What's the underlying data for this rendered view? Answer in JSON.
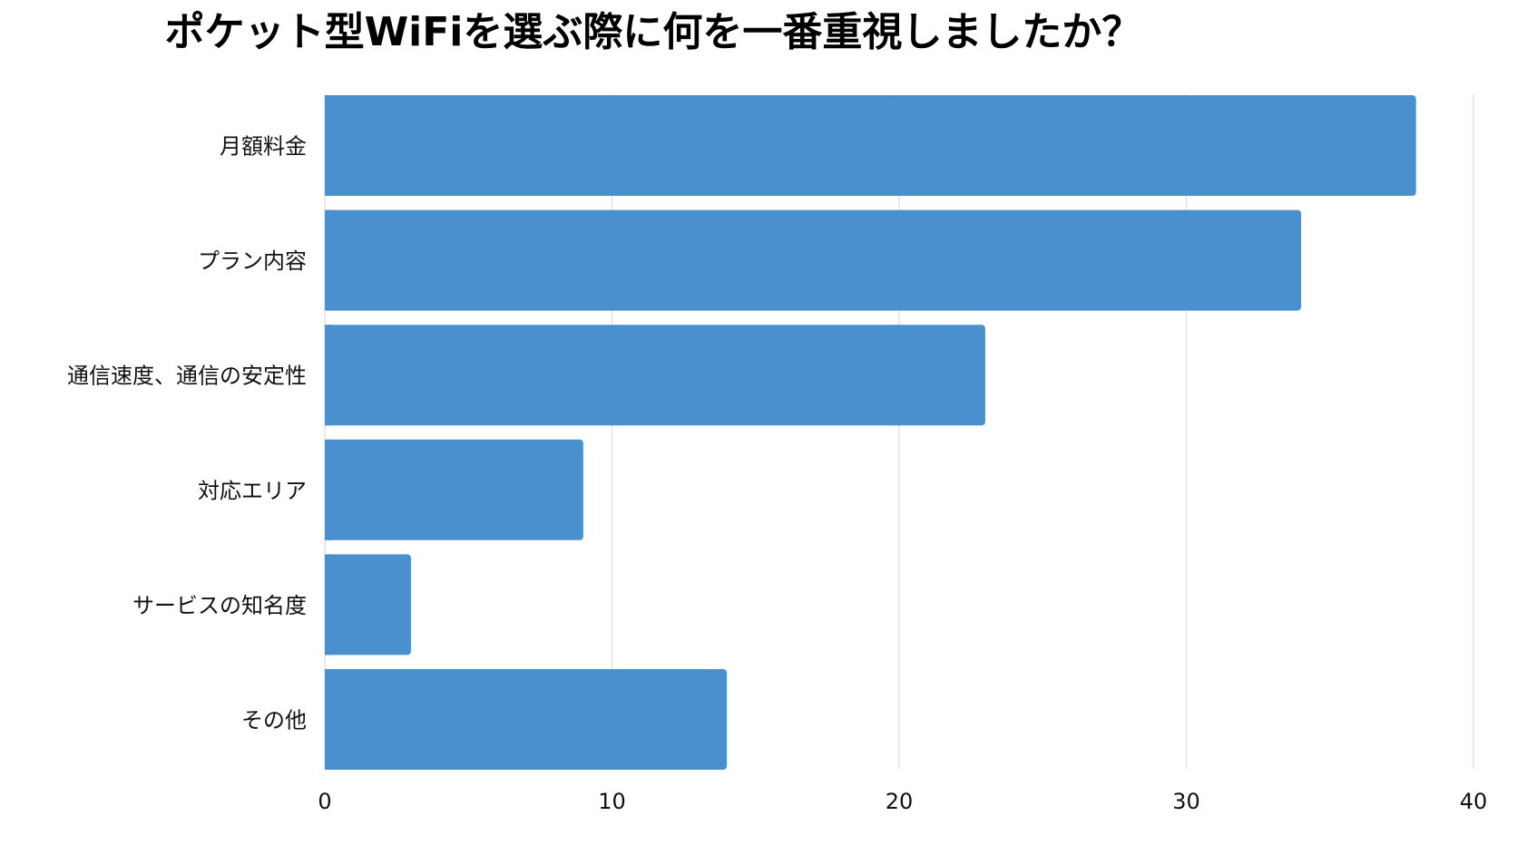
{
  "chart_data": {
    "type": "bar",
    "orientation": "horizontal",
    "title": "ポケット型WiFiを選ぶ際に何を一番重視しましたか？",
    "categories": [
      "月額料金",
      "プラン内容",
      "通信速度、通信の安定性",
      "対応エリア",
      "サービスの知名度",
      "その他"
    ],
    "values": [
      38,
      34,
      23,
      9,
      3,
      14
    ],
    "xlim": [
      0,
      40
    ],
    "xticks": [
      "0",
      "10",
      "20",
      "30",
      "40"
    ],
    "grid": true,
    "legend": "none",
    "bar_color": "#4a90cf",
    "grid_color": "#dddddd"
  }
}
